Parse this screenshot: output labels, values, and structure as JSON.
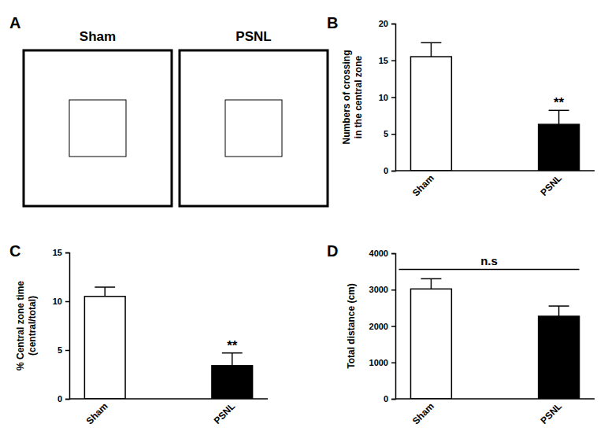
{
  "chart_data": [
    {
      "type": "track",
      "panel": "A",
      "titles": [
        "Sham",
        "PSNL"
      ]
    },
    {
      "type": "bar",
      "panel": "B",
      "categories": [
        "Sham",
        "PSNL"
      ],
      "values": [
        15.5,
        6.3
      ],
      "errors": [
        1.9,
        1.9
      ],
      "colors": [
        "#ffffff",
        "#000000"
      ],
      "ylabel": [
        "Numbers of crossing",
        "in the central zone"
      ],
      "ylim": [
        0,
        20
      ],
      "yticks": [
        0,
        5,
        10,
        15,
        20
      ],
      "annotations": [
        {
          "text": "**",
          "categories": [
            "PSNL"
          ]
        }
      ]
    },
    {
      "type": "bar",
      "panel": "C",
      "categories": [
        "Sham",
        "PSNL"
      ],
      "values": [
        10.5,
        3.4
      ],
      "errors": [
        0.95,
        1.3
      ],
      "colors": [
        "#ffffff",
        "#000000"
      ],
      "ylabel": [
        "% Central zone time",
        "(central/total)"
      ],
      "ylim": [
        0,
        15
      ],
      "yticks": [
        0,
        5,
        10,
        15
      ],
      "annotations": [
        {
          "text": "**",
          "categories": [
            "PSNL"
          ]
        }
      ]
    },
    {
      "type": "bar",
      "panel": "D",
      "categories": [
        "Sham",
        "PSNL"
      ],
      "values": [
        3020,
        2270
      ],
      "errors": [
        280,
        280
      ],
      "colors": [
        "#ffffff",
        "#000000"
      ],
      "ylabel": [
        "Total distance (cm)"
      ],
      "ylim": [
        0,
        4000
      ],
      "yticks": [
        0,
        1000,
        2000,
        3000,
        4000
      ],
      "annotations": [
        {
          "text": "n.s",
          "categories": [
            "Sham",
            "PSNL"
          ]
        }
      ]
    }
  ]
}
